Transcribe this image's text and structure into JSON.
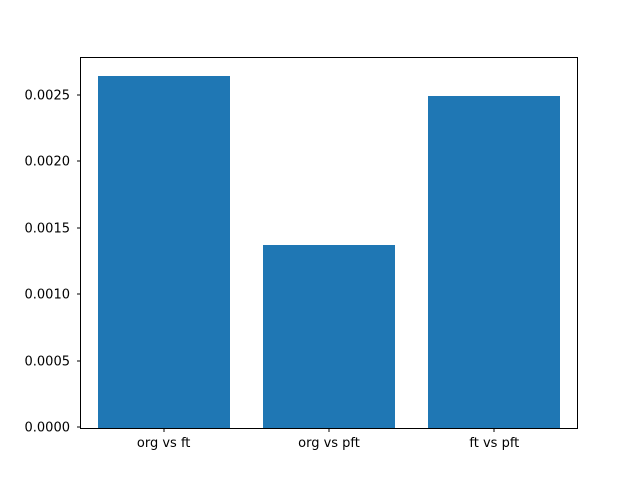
{
  "chart_data": {
    "type": "bar",
    "categories": [
      "org vs ft",
      "org vs pft",
      "ft vs pft"
    ],
    "values": [
      0.00265,
      0.00138,
      0.0025
    ],
    "title": "",
    "xlabel": "",
    "ylabel": "",
    "ylim": [
      0,
      0.0027825
    ],
    "yticks": [
      0.0,
      0.0005,
      0.001,
      0.0015,
      0.002,
      0.0025
    ],
    "ytick_labels": [
      "0.0000",
      "0.0005",
      "0.0010",
      "0.0015",
      "0.0020",
      "0.0025"
    ],
    "bar_color": "#1f77b4",
    "background_color": "#ffffff",
    "bar_width_fraction": 0.8,
    "grid": false,
    "legend_position": "none"
  }
}
